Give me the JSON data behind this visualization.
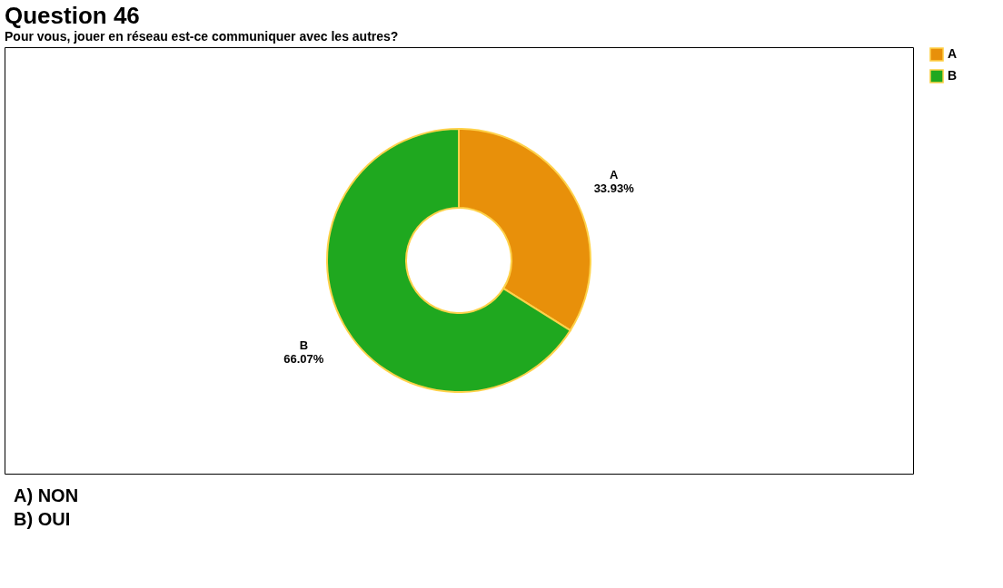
{
  "chart_data": {
    "type": "donut",
    "title": "Question 46",
    "subtitle": "Pour vous, jouer en réseau est-ce communiquer avec les autres?",
    "categories": [
      "A",
      "B"
    ],
    "values": [
      33.93,
      66.07
    ],
    "colors": [
      "#e8900a",
      "#1fa81f"
    ],
    "value_labels": [
      "33.93%",
      "66.07%"
    ],
    "legend": "right",
    "annotations": [
      "A) NON",
      "B) OUI"
    ]
  }
}
